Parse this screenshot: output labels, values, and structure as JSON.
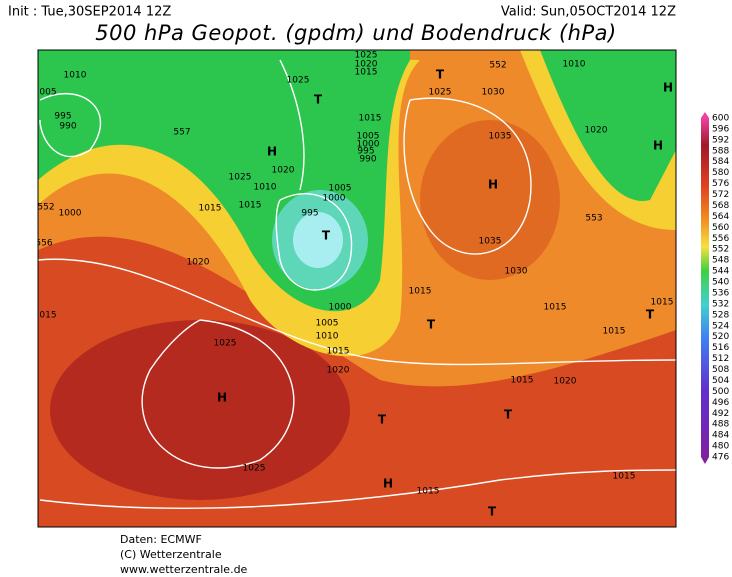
{
  "header": {
    "init": "Init : Tue,30SEP2014 12Z",
    "valid": "Valid: Sun,05OCT2014 12Z",
    "title": "500 hPa Geopot. (gpdm) und Bodendruck (hPa)"
  },
  "colorbar": {
    "labels": [
      600,
      596,
      592,
      588,
      584,
      580,
      576,
      572,
      568,
      564,
      560,
      556,
      552,
      548,
      544,
      540,
      536,
      532,
      528,
      524,
      520,
      516,
      512,
      508,
      504,
      500,
      496,
      492,
      488,
      484,
      480,
      476
    ]
  },
  "map_labels": [
    "1010",
    "005",
    "995",
    "990",
    "557",
    "1025",
    "1025",
    "1020",
    "1015",
    "T",
    "H",
    "1020",
    "1025",
    "1010",
    "1005",
    "1000",
    "995",
    "1015",
    "1015",
    "1005",
    "1000",
    "995",
    "990",
    "552",
    "1000",
    "1015",
    "556",
    "1020",
    "T",
    "T",
    "552",
    "1025",
    "1030",
    "1010",
    "H",
    "1035",
    "H",
    "1020",
    "H",
    "553",
    "1035",
    "1030",
    "1015",
    "1015",
    "T",
    "1015",
    "1015",
    "T",
    "1000",
    "1005",
    "1010",
    "1015",
    "1020",
    "015",
    "1025",
    "H",
    "1015",
    "1020",
    "T",
    "T",
    "1025",
    "H",
    "1015",
    "1015",
    "T"
  ],
  "footer": [
    "Daten: ECMWF",
    "(C) Wetterzentrale",
    "www.wetterzentrale.de"
  ]
}
